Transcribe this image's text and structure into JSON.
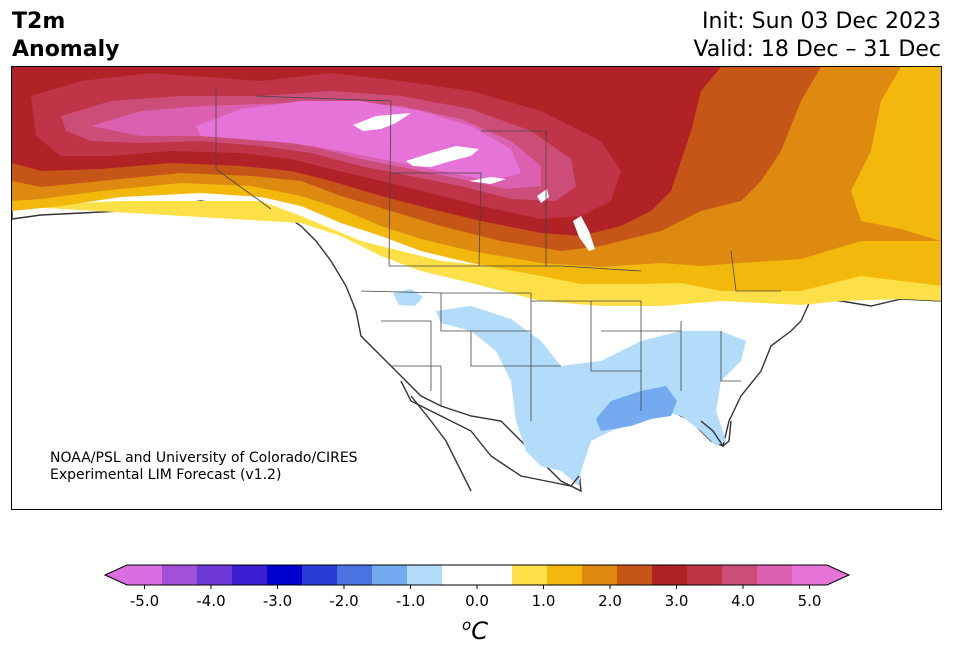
{
  "header": {
    "title_line1": "T2m",
    "title_line2": "Anomaly",
    "init": "Init: Sun 03 Dec 2023",
    "valid": "Valid: 18 Dec – 31 Dec"
  },
  "credit": {
    "line1": "NOAA/PSL and University of Colorado/CIRES",
    "line2": "Experimental LIM Forecast (v1.2)"
  },
  "colorbar": {
    "unit_sup": "o",
    "unit": "C",
    "colors": [
      "#d86ee0",
      "#a350d8",
      "#6e38d8",
      "#3a1ed0",
      "#0000cc",
      "#2a3cd8",
      "#4a72e0",
      "#74aaf0",
      "#b2dcfa",
      "#ffffff",
      "#ffffff",
      "#fde047",
      "#f2b90c",
      "#de8a10",
      "#c65518",
      "#b02226",
      "#c03448",
      "#cc4e78",
      "#dc60b0",
      "#e673d8"
    ],
    "tick_labels": [
      "-5.0",
      "-4.0",
      "-3.0",
      "-2.0",
      "-1.0",
      "0.0",
      "1.0",
      "2.0",
      "3.0",
      "4.0",
      "5.0"
    ],
    "min": -5.0,
    "max": 5.0,
    "step": 0.5
  },
  "palette": {
    "ocean": "#ffffff",
    "coast": "#333333",
    "lake": "#ffffff"
  }
}
